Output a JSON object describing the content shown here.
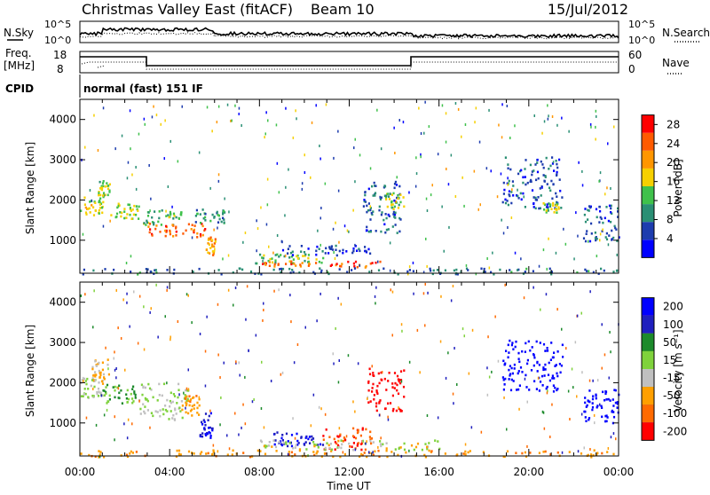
{
  "header": {
    "station": "Christmas Valley East (fitACF)",
    "beam": "Beam 10",
    "date": "15/Jul/2012"
  },
  "status_panels": {
    "nsky_label": "N.Sky",
    "nsearch_label": "N.Search",
    "noise_left_ticks": [
      "10^5",
      "10^0"
    ],
    "noise_right_ticks": [
      "10^5",
      "10^0"
    ],
    "freq_label": "Freq.",
    "freq_unit": "[MHz]",
    "freq_ticks": [
      "18",
      "8"
    ],
    "nave_label": "Nave",
    "nave_ticks": [
      "60",
      "0"
    ],
    "cpid_label": "CPID",
    "cpid_value": "normal (fast) 151 IF"
  },
  "chart_data": [
    {
      "type": "heatmap",
      "name": "power",
      "ylabel": "Slant Range [km]",
      "xlabel": "Time UT",
      "x_ticks": [
        "00:00",
        "04:00",
        "08:00",
        "12:00",
        "16:00",
        "20:00",
        "00:00"
      ],
      "xlim_hours": [
        0,
        24
      ],
      "ylim_km": [
        180,
        4500
      ],
      "y_ticks": [
        1000,
        2000,
        3000,
        4000
      ],
      "colorbar": {
        "label": "Power [dB]",
        "ticks": [
          4,
          8,
          12,
          16,
          20,
          24,
          28
        ],
        "range": [
          0,
          30
        ],
        "colors": [
          "#0000ff",
          "#1d3cae",
          "#2a8f74",
          "#3fc14b",
          "#f6d000",
          "#ff9600",
          "#ff5a00",
          "#ff0000"
        ]
      },
      "regions": [
        {
          "t0": 0.0,
          "t1": 1.0,
          "r0": 1600,
          "r1": 2150,
          "level": 16
        },
        {
          "t0": 0.8,
          "t1": 1.4,
          "r0": 2100,
          "r1": 2500,
          "level": 14
        },
        {
          "t0": 1.3,
          "t1": 2.6,
          "r0": 1550,
          "r1": 1950,
          "level": 15
        },
        {
          "t0": 2.8,
          "t1": 4.5,
          "r0": 1400,
          "r1": 1800,
          "level": 12
        },
        {
          "t0": 3.0,
          "t1": 5.6,
          "r0": 1100,
          "r1": 1450,
          "level": 24
        },
        {
          "t0": 5.6,
          "t1": 6.0,
          "r0": 650,
          "r1": 1100,
          "level": 20
        },
        {
          "t0": 5.0,
          "t1": 6.5,
          "r0": 1450,
          "r1": 1800,
          "level": 9
        },
        {
          "t0": 7.8,
          "t1": 11.0,
          "r0": 450,
          "r1": 700,
          "level": 14
        },
        {
          "t0": 8.0,
          "t1": 13.5,
          "r0": 350,
          "r1": 500,
          "level": 24
        },
        {
          "t0": 9.0,
          "t1": 13.0,
          "r0": 650,
          "r1": 900,
          "level": 6
        },
        {
          "t0": 12.6,
          "t1": 14.3,
          "r0": 1200,
          "r1": 2500,
          "level": 7
        },
        {
          "t0": 13.5,
          "t1": 14.4,
          "r0": 1800,
          "r1": 2200,
          "level": 14
        },
        {
          "t0": 0.0,
          "t1": 24.0,
          "r0": 180,
          "r1": 330,
          "level": 8
        },
        {
          "t0": 18.8,
          "t1": 21.5,
          "r0": 1800,
          "r1": 3100,
          "level": 6
        },
        {
          "t0": 20.6,
          "t1": 21.4,
          "r0": 1700,
          "r1": 1950,
          "level": 14
        },
        {
          "t0": 22.4,
          "t1": 24.0,
          "r0": 1000,
          "r1": 1900,
          "level": 6
        }
      ]
    },
    {
      "type": "heatmap",
      "name": "velocity",
      "ylabel": "Slant Range [km]",
      "xlabel": "Time UT",
      "x_ticks": [
        "00:00",
        "04:00",
        "08:00",
        "12:00",
        "16:00",
        "20:00",
        "00:00"
      ],
      "xlim_hours": [
        0,
        24
      ],
      "ylim_km": [
        180,
        4500
      ],
      "y_ticks": [
        1000,
        2000,
        3000,
        4000
      ],
      "colorbar": {
        "label": "Velocity [m s⁻¹]",
        "ticks": [
          "200",
          "100",
          "50",
          "15",
          "-15",
          "-50",
          "-100",
          "-200"
        ],
        "colors": [
          "#0000ff",
          "#1f1fbe",
          "#1c8a2b",
          "#7fd23c",
          "#c0c0c0",
          "#ff9f00",
          "#ff6a00",
          "#ff0000"
        ]
      },
      "regions": [
        {
          "t0": 0.0,
          "t1": 1.0,
          "r0": 1600,
          "r1": 2150,
          "value": 0
        },
        {
          "t0": 0.5,
          "t1": 1.3,
          "r0": 2000,
          "r1": 2600,
          "value": -40
        },
        {
          "t0": 1.0,
          "t1": 2.5,
          "r0": 1500,
          "r1": 2000,
          "value": 30
        },
        {
          "t0": 2.5,
          "t1": 4.8,
          "r0": 1100,
          "r1": 2000,
          "value": 0
        },
        {
          "t0": 4.5,
          "t1": 5.3,
          "r0": 1200,
          "r1": 1700,
          "value": -60
        },
        {
          "t0": 5.3,
          "t1": 5.9,
          "r0": 650,
          "r1": 1300,
          "value": 150
        },
        {
          "t0": 8.5,
          "t1": 10.8,
          "r0": 450,
          "r1": 800,
          "value": 150
        },
        {
          "t0": 10.8,
          "t1": 13.0,
          "r0": 350,
          "r1": 900,
          "value": -150
        },
        {
          "t0": 12.8,
          "t1": 14.4,
          "r0": 1300,
          "r1": 2400,
          "value": -200
        },
        {
          "t0": 0.0,
          "t1": 24.0,
          "r0": 180,
          "r1": 350,
          "value": -60
        },
        {
          "t0": 8.0,
          "t1": 16.0,
          "r0": 350,
          "r1": 600,
          "value": -10
        },
        {
          "t0": 18.8,
          "t1": 21.5,
          "r0": 1800,
          "r1": 3100,
          "value": 200
        },
        {
          "t0": 22.4,
          "t1": 24.0,
          "r0": 1000,
          "r1": 1900,
          "value": 180
        }
      ]
    }
  ]
}
